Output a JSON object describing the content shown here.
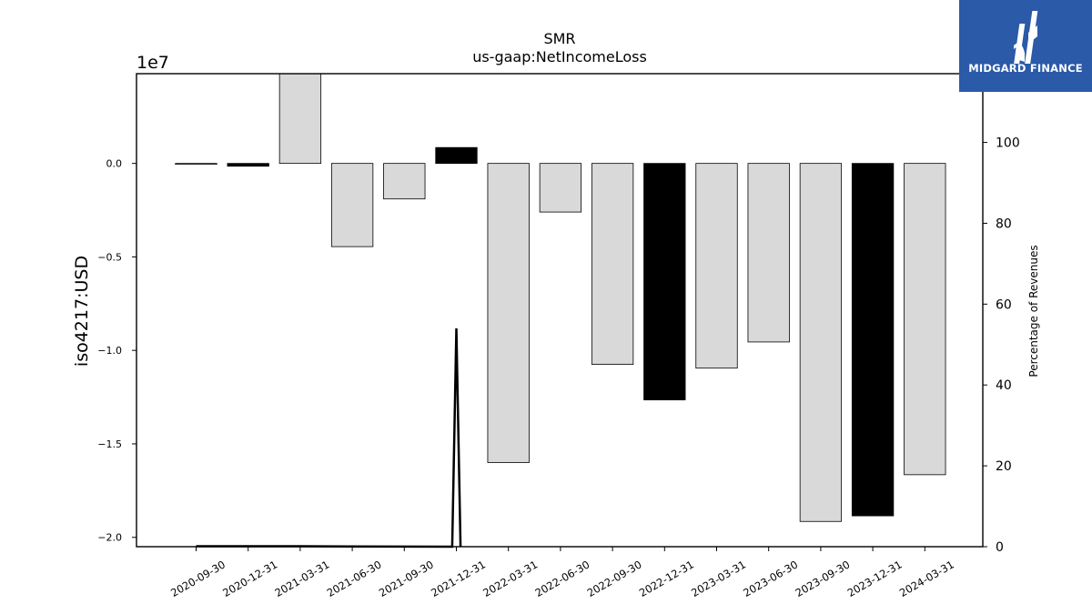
{
  "brand": {
    "name": "MIDGARD FINANCE",
    "bg_color": "#2a5aa8"
  },
  "chart_data": {
    "type": "bar",
    "title": "SMR",
    "subtitle": "us-gaap:NetIncomeLoss",
    "ylabel": "iso4217:USD",
    "y_multiplier_label": "1e7",
    "y2label": "Percentage of Revenues",
    "categories": [
      "2020-09-30",
      "2020-12-31",
      "2021-03-31",
      "2021-06-30",
      "2021-09-30",
      "2021-12-31",
      "2022-03-31",
      "2022-06-30",
      "2022-09-30",
      "2022-12-31",
      "2023-03-31",
      "2023-06-30",
      "2023-09-30",
      "2023-12-31",
      "2024-03-31"
    ],
    "values": [
      -50000,
      -150000,
      4800000,
      -4450000,
      -1900000,
      850000,
      -16000000,
      -2600000,
      -10750000,
      -12650000,
      -10950000,
      -9550000,
      -19150000,
      -18850000,
      -16650000
    ],
    "bar_colors": [
      "#d9d9d9",
      "#000000",
      "#d9d9d9",
      "#d9d9d9",
      "#d9d9d9",
      "#000000",
      "#d9d9d9",
      "#d9d9d9",
      "#d9d9d9",
      "#000000",
      "#d9d9d9",
      "#d9d9d9",
      "#d9d9d9",
      "#000000",
      "#d9d9d9"
    ],
    "yticks": [
      0.0,
      -0.5,
      -1.0,
      -1.5,
      -2.0
    ],
    "ylim": [
      -20500000,
      4800000
    ],
    "y2ticks": [
      0,
      20,
      40,
      60,
      80,
      100
    ],
    "y2lim": [
      0,
      117
    ],
    "line_series": {
      "name": "",
      "points": [
        [
          0.0,
          0.1
        ],
        [
          2.0,
          0.1
        ],
        [
          4.92,
          0.0
        ],
        [
          5.0,
          54.0
        ],
        [
          5.08,
          0.0
        ]
      ]
    },
    "grid": false
  }
}
